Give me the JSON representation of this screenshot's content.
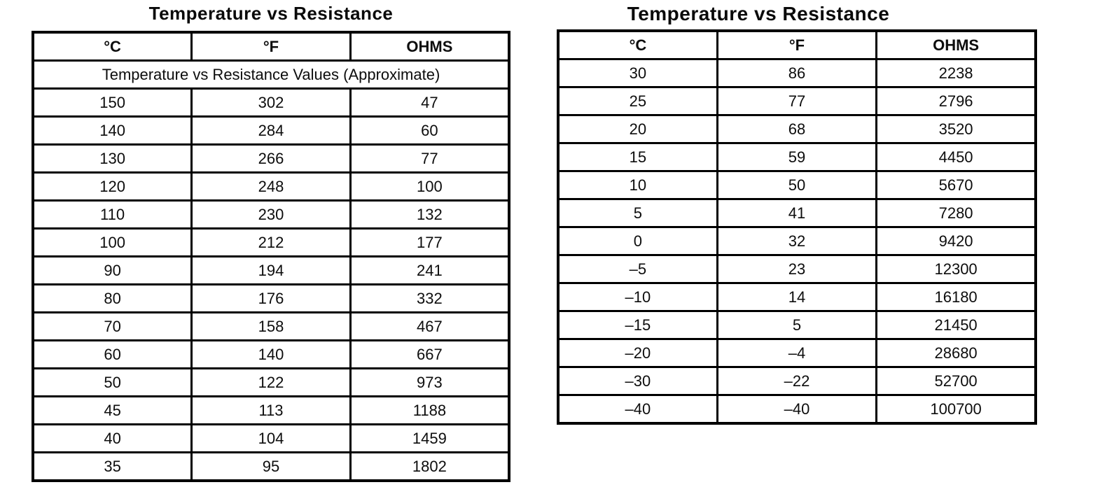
{
  "page": {
    "background_color": "#ffffff",
    "border_color": "#000000",
    "text_color": "#0d0d0d"
  },
  "left_table": {
    "title": "Temperature vs Resistance",
    "headers": [
      "°C",
      "°F",
      "OHMS"
    ],
    "subheader": "Temperature vs Resistance Values (Approximate)",
    "rows": [
      [
        "150",
        "302",
        "47"
      ],
      [
        "140",
        "284",
        "60"
      ],
      [
        "130",
        "266",
        "77"
      ],
      [
        "120",
        "248",
        "100"
      ],
      [
        "110",
        "230",
        "132"
      ],
      [
        "100",
        "212",
        "177"
      ],
      [
        "90",
        "194",
        "241"
      ],
      [
        "80",
        "176",
        "332"
      ],
      [
        "70",
        "158",
        "467"
      ],
      [
        "60",
        "140",
        "667"
      ],
      [
        "50",
        "122",
        "973"
      ],
      [
        "45",
        "113",
        "1188"
      ],
      [
        "40",
        "104",
        "1459"
      ],
      [
        "35",
        "95",
        "1802"
      ]
    ]
  },
  "right_table": {
    "title": "Temperature vs Resistance",
    "headers": [
      "°C",
      "°F",
      "OHMS"
    ],
    "rows": [
      [
        "30",
        "86",
        "2238"
      ],
      [
        "25",
        "77",
        "2796"
      ],
      [
        "20",
        "68",
        "3520"
      ],
      [
        "15",
        "59",
        "4450"
      ],
      [
        "10",
        "50",
        "5670"
      ],
      [
        "5",
        "41",
        "7280"
      ],
      [
        "0",
        "32",
        "9420"
      ],
      [
        "–5",
        "23",
        "12300"
      ],
      [
        "–10",
        "14",
        "16180"
      ],
      [
        "–15",
        "5",
        "21450"
      ],
      [
        "–20",
        "–4",
        "28680"
      ],
      [
        "–30",
        "–22",
        "52700"
      ],
      [
        "–40",
        "–40",
        "100700"
      ]
    ]
  }
}
